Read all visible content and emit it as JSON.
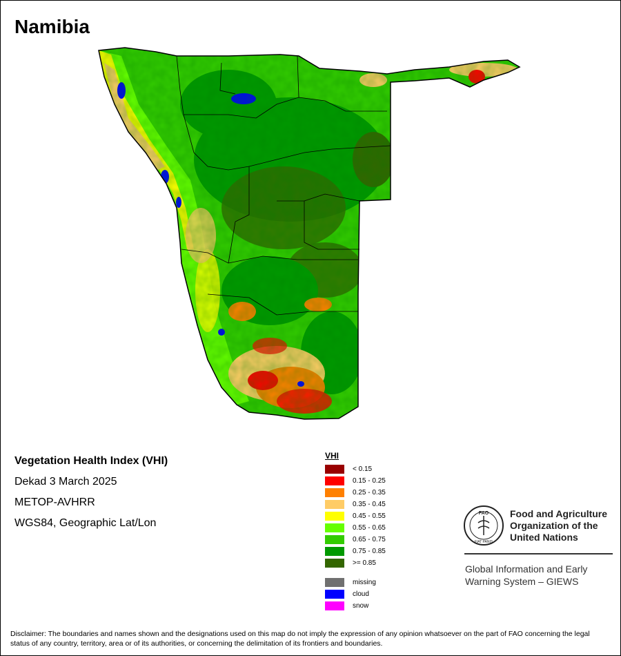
{
  "map": {
    "country": "Namibia",
    "index_title": "Vegetation Health Index (VHI)",
    "period": "Dekad 3 March 2025",
    "sensor": "METOP-AVHRR",
    "projection": "WGS84, Geographic Lat/Lon"
  },
  "legend": {
    "title": "VHI",
    "classes": [
      {
        "label": "< 0.15",
        "color": "#990000"
      },
      {
        "label": "0.15 - 0.25",
        "color": "#ff0000"
      },
      {
        "label": "0.25 - 0.35",
        "color": "#ff8000"
      },
      {
        "label": "0.35 - 0.45",
        "color": "#ffcc66"
      },
      {
        "label": "0.45 - 0.55",
        "color": "#ffff00"
      },
      {
        "label": "0.55 - 0.65",
        "color": "#66ff00"
      },
      {
        "label": "0.65 - 0.75",
        "color": "#33cc00"
      },
      {
        "label": "0.75 - 0.85",
        "color": "#009900"
      },
      {
        "label": ">= 0.85",
        "color": "#336600"
      }
    ],
    "other": [
      {
        "label": "missing",
        "color": "#707070"
      },
      {
        "label": "cloud",
        "color": "#0000ff"
      },
      {
        "label": "snow",
        "color": "#ff00ff"
      }
    ]
  },
  "organization": {
    "name_line1": "Food and Agriculture",
    "name_line2": "Organization of the",
    "name_line3": "United Nations",
    "giews_line1": "Global Information and Early",
    "giews_line2": "Warning System – GIEWS",
    "logo_text": "FAO",
    "logo_motto": "FIAT PANIS"
  },
  "disclaimer": "Disclaimer: The boundaries and names shown and the designations used on this map do not imply the expression of any opinion whatsoever on the part of FAO concerning the legal status of any country, territory, area or of its authorities, or concerning the delimitation of its frontiers and boundaries."
}
